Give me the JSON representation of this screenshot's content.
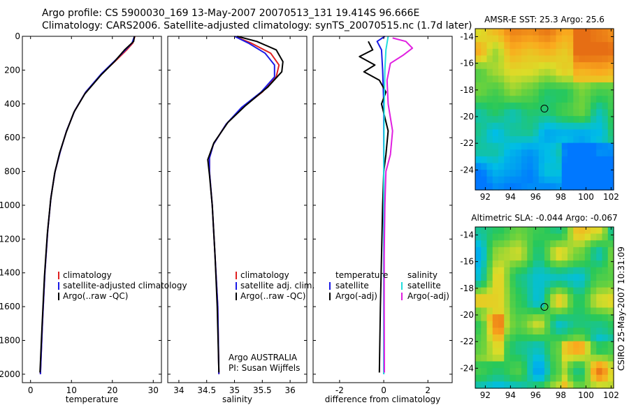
{
  "header": {
    "line1": "Argo profile: CS 5900030_169 13-May-2007 20070513_131 19.414S 96.666E",
    "line2": "Climatology: CARS2006. Satellite-adjusted climatology: synTS_20070515.nc (1.7d later)"
  },
  "credit": "CSIRO 25-May-2007 10:31:09",
  "colors": {
    "climatology": "#e02020",
    "satellite": "#1a1ae6",
    "argo": "#000000",
    "sat_sal": "#22dddd",
    "argo_sal": "#e020e0"
  },
  "chart_data": [
    {
      "type": "line",
      "id": "temperature",
      "xlabel": "temperature",
      "xlim": [
        -2,
        32
      ],
      "ylim": [
        2050,
        0
      ],
      "xticks": [
        "0",
        "10",
        "20",
        "30"
      ],
      "yticks": [
        "0",
        "200",
        "400",
        "600",
        "800",
        "1000",
        "1200",
        "1400",
        "1600",
        "1800",
        "2000"
      ],
      "legend": {
        "placement": "bottom-center",
        "entries": [
          "climatology",
          "satellite-adjusted climatology",
          "Argo(..raw -QC)"
        ]
      },
      "series": [
        {
          "name": "climatology",
          "color": "#e02020",
          "points": [
            [
              25.5,
              0
            ],
            [
              25,
              40
            ],
            [
              23.5,
              80
            ],
            [
              21,
              140
            ],
            [
              17.5,
              220
            ],
            [
              13.5,
              330
            ],
            [
              10.8,
              440
            ],
            [
              8.8,
              560
            ],
            [
              7.3,
              680
            ],
            [
              6,
              800
            ],
            [
              5,
              950
            ],
            [
              4.2,
              1150
            ],
            [
              3.5,
              1400
            ],
            [
              2.9,
              1700
            ],
            [
              2.4,
              2000
            ]
          ]
        },
        {
          "name": "satellite-adjusted climatology",
          "color": "#1a1ae6",
          "points": [
            [
              25.4,
              0
            ],
            [
              24.8,
              40
            ],
            [
              23.2,
              80
            ],
            [
              20.8,
              140
            ],
            [
              17.4,
              220
            ],
            [
              13.5,
              330
            ],
            [
              10.8,
              440
            ],
            [
              8.8,
              560
            ],
            [
              7.3,
              680
            ],
            [
              6,
              800
            ],
            [
              5,
              950
            ],
            [
              4.2,
              1150
            ],
            [
              3.5,
              1400
            ],
            [
              2.9,
              1700
            ],
            [
              2.4,
              2000
            ]
          ]
        },
        {
          "name": "Argo(..raw -QC)",
          "color": "#000000",
          "points": [
            [
              25.4,
              0
            ],
            [
              25.2,
              30
            ],
            [
              23,
              80
            ],
            [
              20.5,
              150
            ],
            [
              17.2,
              230
            ],
            [
              13.3,
              340
            ],
            [
              10.6,
              450
            ],
            [
              8.7,
              570
            ],
            [
              7.1,
              690
            ],
            [
              5.9,
              810
            ],
            [
              4.9,
              970
            ],
            [
              4.1,
              1170
            ],
            [
              3.4,
              1420
            ],
            [
              2.8,
              1720
            ],
            [
              2.3,
              1990
            ]
          ]
        }
      ]
    },
    {
      "type": "line",
      "id": "salinity",
      "xlabel": "salinity",
      "xlim": [
        33.8,
        36.3
      ],
      "ylim": [
        2050,
        0
      ],
      "xticks": [
        "34",
        "34.5",
        "35",
        "35.5",
        "36"
      ],
      "legend": {
        "placement": "bottom-center",
        "entries": [
          "climatology",
          "satellite adj. clim.",
          "Argo(..raw -QC)"
        ]
      },
      "annotation": [
        "Argo AUSTRALIA",
        "PI: Susan Wijffels"
      ],
      "series": [
        {
          "name": "climatology",
          "color": "#e02020",
          "points": [
            [
              35.0,
              0
            ],
            [
              35.3,
              40
            ],
            [
              35.65,
              100
            ],
            [
              35.8,
              170
            ],
            [
              35.75,
              240
            ],
            [
              35.5,
              330
            ],
            [
              35.15,
              420
            ],
            [
              34.85,
              520
            ],
            [
              34.62,
              640
            ],
            [
              34.55,
              720
            ],
            [
              34.55,
              800
            ],
            [
              34.6,
              1000
            ],
            [
              34.65,
              1300
            ],
            [
              34.7,
              1600
            ],
            [
              34.72,
              2000
            ]
          ]
        },
        {
          "name": "satellite adj. clim.",
          "color": "#1a1ae6",
          "points": [
            [
              35.0,
              0
            ],
            [
              35.25,
              40
            ],
            [
              35.55,
              100
            ],
            [
              35.72,
              170
            ],
            [
              35.72,
              240
            ],
            [
              35.48,
              330
            ],
            [
              35.13,
              420
            ],
            [
              34.85,
              520
            ],
            [
              34.62,
              640
            ],
            [
              34.55,
              720
            ],
            [
              34.55,
              800
            ],
            [
              34.6,
              1000
            ],
            [
              34.65,
              1300
            ],
            [
              34.7,
              1600
            ],
            [
              34.72,
              2000
            ]
          ]
        },
        {
          "name": "Argo(..raw -QC)",
          "color": "#000000",
          "points": [
            [
              35.05,
              0
            ],
            [
              35.4,
              30
            ],
            [
              35.75,
              80
            ],
            [
              35.87,
              150
            ],
            [
              35.85,
              210
            ],
            [
              35.6,
              300
            ],
            [
              35.2,
              410
            ],
            [
              34.88,
              510
            ],
            [
              34.63,
              630
            ],
            [
              34.52,
              730
            ],
            [
              34.55,
              820
            ],
            [
              34.6,
              1000
            ],
            [
              34.65,
              1300
            ],
            [
              34.69,
              1600
            ],
            [
              34.72,
              1990
            ]
          ]
        }
      ]
    },
    {
      "type": "line",
      "id": "difference",
      "xlabel": "difference from climatology",
      "xlim": [
        -3.2,
        3.1
      ],
      "ylim": [
        2050,
        0
      ],
      "xticks": [
        "-2",
        "0",
        "2"
      ],
      "legend": {
        "placement": "bottom-center",
        "groups": [
          {
            "heading": "temperature",
            "entries": [
              "satellite",
              "Argo(-adj)"
            ]
          },
          {
            "heading": "salinity",
            "entries": [
              "satellite",
              "Argo(-adj)"
            ]
          }
        ]
      },
      "series": [
        {
          "name": "temperature satellite",
          "color": "#1a1ae6",
          "points": [
            [
              0.05,
              0
            ],
            [
              -0.3,
              30
            ],
            [
              -0.1,
              80
            ],
            [
              -0.05,
              200
            ],
            [
              0,
              400
            ],
            [
              0,
              800
            ],
            [
              0,
              1200
            ],
            [
              0,
              1600
            ],
            [
              0,
              2000
            ]
          ]
        },
        {
          "name": "temperature Argo(-adj)",
          "color": "#000000",
          "points": [
            [
              -0.7,
              30
            ],
            [
              -0.5,
              80
            ],
            [
              -1.1,
              120
            ],
            [
              -0.4,
              170
            ],
            [
              -0.9,
              210
            ],
            [
              -0.2,
              260
            ],
            [
              0.1,
              330
            ],
            [
              -0.1,
              400
            ],
            [
              0.2,
              560
            ],
            [
              0.1,
              700
            ],
            [
              0,
              800
            ],
            [
              -0.05,
              1000
            ],
            [
              -0.1,
              1300
            ],
            [
              -0.15,
              1600
            ],
            [
              -0.2,
              1990
            ]
          ]
        },
        {
          "name": "salinity satellite",
          "color": "#22dddd",
          "points": [
            [
              0.2,
              0
            ],
            [
              0.1,
              80
            ],
            [
              0.05,
              200
            ],
            [
              0.02,
              400
            ],
            [
              0,
              800
            ],
            [
              0,
              1200
            ],
            [
              0,
              1600
            ],
            [
              0,
              2000
            ]
          ]
        },
        {
          "name": "salinity Argo(-adj)",
          "color": "#e020e0",
          "points": [
            [
              0.4,
              10
            ],
            [
              1.0,
              30
            ],
            [
              1.3,
              70
            ],
            [
              0.9,
              110
            ],
            [
              0.3,
              160
            ],
            [
              0.15,
              260
            ],
            [
              0.2,
              400
            ],
            [
              0.4,
              560
            ],
            [
              0.3,
              700
            ],
            [
              0.1,
              800
            ],
            [
              0.05,
              1000
            ],
            [
              0.02,
              1300
            ],
            [
              0.02,
              1600
            ],
            [
              0.03,
              1990
            ]
          ]
        }
      ]
    }
  ],
  "maps": [
    {
      "id": "sst",
      "title": "AMSR-E SST: 25.3  Argo: 25.6",
      "xticks": [
        "92",
        "94",
        "96",
        "98",
        "100",
        "102"
      ],
      "yticks": [
        "-14",
        "-16",
        "-18",
        "-20",
        "-22",
        "-24"
      ],
      "xlim": [
        91.2,
        102.2
      ],
      "ylim": [
        -25.5,
        -13.4
      ],
      "marker": [
        96.7,
        -19.4
      ]
    },
    {
      "id": "sla",
      "title": "Altimetric SLA: -0.044  Argo: -0.067",
      "xticks": [
        "92",
        "94",
        "96",
        "98",
        "100",
        "102"
      ],
      "yticks": [
        "-14",
        "-16",
        "-18",
        "-20",
        "-22",
        "-24"
      ],
      "xlim": [
        91.2,
        102.2
      ],
      "ylim": [
        -25.5,
        -13.4
      ],
      "marker": [
        96.7,
        -19.4
      ]
    }
  ]
}
